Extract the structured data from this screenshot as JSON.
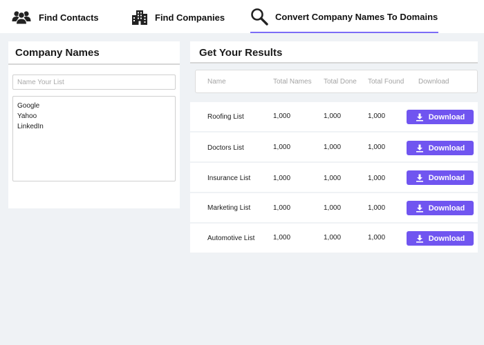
{
  "nav": {
    "items": [
      {
        "label": "Find Contacts",
        "icon": "users-icon"
      },
      {
        "label": "Find Companies",
        "icon": "building-icon"
      },
      {
        "label": "Convert Company Names To Domains",
        "icon": "search-icon",
        "active": true
      }
    ],
    "accent_color": "#7b6cf6"
  },
  "left_panel": {
    "title": "Company Names",
    "list_name_placeholder": "Name Your List",
    "list_name_value": "",
    "company_names_text": "Google\nYahoo\nLinkedIn"
  },
  "right_panel": {
    "title": "Get Your Results",
    "columns": [
      "Name",
      "Total Names",
      "Total Done",
      "Total Found",
      "Download"
    ],
    "rows": [
      {
        "name": "Roofing List",
        "total_names": "1,000",
        "total_done": "1,000",
        "total_found": "1,000",
        "action": "Download"
      },
      {
        "name": "Doctors List",
        "total_names": "1,000",
        "total_done": "1,000",
        "total_found": "1,000",
        "action": "Download"
      },
      {
        "name": "Insurance List",
        "total_names": "1,000",
        "total_done": "1,000",
        "total_found": "1,000",
        "action": "Download"
      },
      {
        "name": "Marketing List",
        "total_names": "1,000",
        "total_done": "1,000",
        "total_found": "1,000",
        "action": "Download"
      },
      {
        "name": "Automotive List",
        "total_names": "1,000",
        "total_done": "1,000",
        "total_found": "1,000",
        "action": "Download"
      }
    ],
    "button_color": "#7055f0"
  }
}
